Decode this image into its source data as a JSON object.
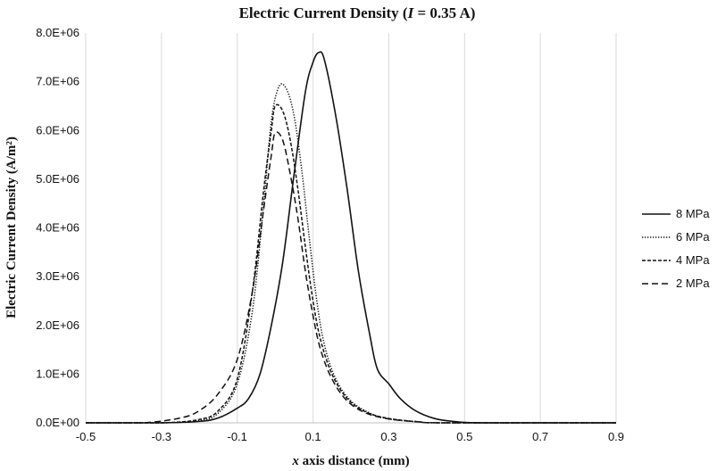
{
  "chart_data": {
    "type": "line",
    "title_main": "Electric Current Density (",
    "title_var": "I",
    "title_rest": " = 0.35 A)",
    "xlabel_var": "x",
    "xlabel_rest": " axis distance (mm)",
    "ylabel": "Electric Current Density (A/m²)",
    "xlim": [
      -0.5,
      0.9
    ],
    "ylim": [
      0,
      8000000
    ],
    "x_ticks": [
      -0.5,
      -0.3,
      -0.1,
      0.1,
      0.3,
      0.5,
      0.7,
      0.9
    ],
    "x_tick_labels": [
      "-0.5",
      "-0.3",
      "-0.1",
      "0.1",
      "0.3",
      "0.5",
      "0.7",
      "0.9"
    ],
    "y_ticks": [
      0,
      1000000,
      2000000,
      3000000,
      4000000,
      5000000,
      6000000,
      7000000,
      8000000
    ],
    "y_tick_labels": [
      "0.0E+00",
      "1.0E+06",
      "2.0E+06",
      "3.0E+06",
      "4.0E+06",
      "5.0E+06",
      "6.0E+06",
      "7.0E+06",
      "8.0E+06"
    ],
    "grid": "vertical",
    "legend_position": "right",
    "series": [
      {
        "name": "8 MPa",
        "style": "solid",
        "points": [
          [
            -0.5,
            0
          ],
          [
            -0.3,
            0
          ],
          [
            -0.2,
            30000
          ],
          [
            -0.15,
            100000
          ],
          [
            -0.1,
            300000
          ],
          [
            -0.07,
            500000
          ],
          [
            -0.04,
            1000000
          ],
          [
            -0.01,
            2000000
          ],
          [
            0.02,
            3300000
          ],
          [
            0.05,
            5100000
          ],
          [
            0.08,
            6800000
          ],
          [
            0.1,
            7400000
          ],
          [
            0.115,
            7600000
          ],
          [
            0.13,
            7450000
          ],
          [
            0.16,
            6300000
          ],
          [
            0.19,
            4800000
          ],
          [
            0.22,
            3100000
          ],
          [
            0.25,
            1800000
          ],
          [
            0.27,
            1100000
          ],
          [
            0.3,
            800000
          ],
          [
            0.33,
            500000
          ],
          [
            0.37,
            250000
          ],
          [
            0.42,
            90000
          ],
          [
            0.47,
            30000
          ],
          [
            0.55,
            0
          ],
          [
            0.9,
            0
          ]
        ]
      },
      {
        "name": "6 MPa",
        "style": "dotted",
        "points": [
          [
            -0.5,
            0
          ],
          [
            -0.3,
            0
          ],
          [
            -0.2,
            50000
          ],
          [
            -0.15,
            200000
          ],
          [
            -0.1,
            800000
          ],
          [
            -0.06,
            2300000
          ],
          [
            -0.03,
            4500000
          ],
          [
            -0.01,
            6200000
          ],
          [
            0.01,
            6900000
          ],
          [
            0.03,
            6850000
          ],
          [
            0.05,
            6300000
          ],
          [
            0.07,
            5200000
          ],
          [
            0.09,
            3800000
          ],
          [
            0.11,
            2500000
          ],
          [
            0.13,
            1600000
          ],
          [
            0.16,
            900000
          ],
          [
            0.2,
            450000
          ],
          [
            0.25,
            200000
          ],
          [
            0.3,
            80000
          ],
          [
            0.38,
            20000
          ],
          [
            0.45,
            0
          ],
          [
            0.9,
            0
          ]
        ]
      },
      {
        "name": "4 MPa",
        "style": "short-dash",
        "points": [
          [
            -0.5,
            0
          ],
          [
            -0.3,
            0
          ],
          [
            -0.2,
            70000
          ],
          [
            -0.15,
            250000
          ],
          [
            -0.1,
            900000
          ],
          [
            -0.06,
            2700000
          ],
          [
            -0.03,
            4800000
          ],
          [
            -0.01,
            6000000
          ],
          [
            0.0,
            6500000
          ],
          [
            0.02,
            6400000
          ],
          [
            0.04,
            5800000
          ],
          [
            0.06,
            4800000
          ],
          [
            0.08,
            3600000
          ],
          [
            0.1,
            2500000
          ],
          [
            0.12,
            1700000
          ],
          [
            0.15,
            1000000
          ],
          [
            0.19,
            500000
          ],
          [
            0.24,
            220000
          ],
          [
            0.3,
            90000
          ],
          [
            0.38,
            20000
          ],
          [
            0.45,
            0
          ],
          [
            0.9,
            0
          ]
        ]
      },
      {
        "name": "2 MPa",
        "style": "long-dash",
        "points": [
          [
            -0.5,
            0
          ],
          [
            -0.35,
            0
          ],
          [
            -0.25,
            100000
          ],
          [
            -0.2,
            250000
          ],
          [
            -0.15,
            600000
          ],
          [
            -0.1,
            1300000
          ],
          [
            -0.06,
            2700000
          ],
          [
            -0.03,
            4400000
          ],
          [
            -0.01,
            5500000
          ],
          [
            0.0,
            5950000
          ],
          [
            0.02,
            5800000
          ],
          [
            0.04,
            5100000
          ],
          [
            0.06,
            4200000
          ],
          [
            0.08,
            3100000
          ],
          [
            0.1,
            2200000
          ],
          [
            0.12,
            1500000
          ],
          [
            0.15,
            900000
          ],
          [
            0.19,
            450000
          ],
          [
            0.24,
            200000
          ],
          [
            0.3,
            80000
          ],
          [
            0.38,
            20000
          ],
          [
            0.45,
            0
          ],
          [
            0.9,
            0
          ]
        ]
      }
    ]
  }
}
